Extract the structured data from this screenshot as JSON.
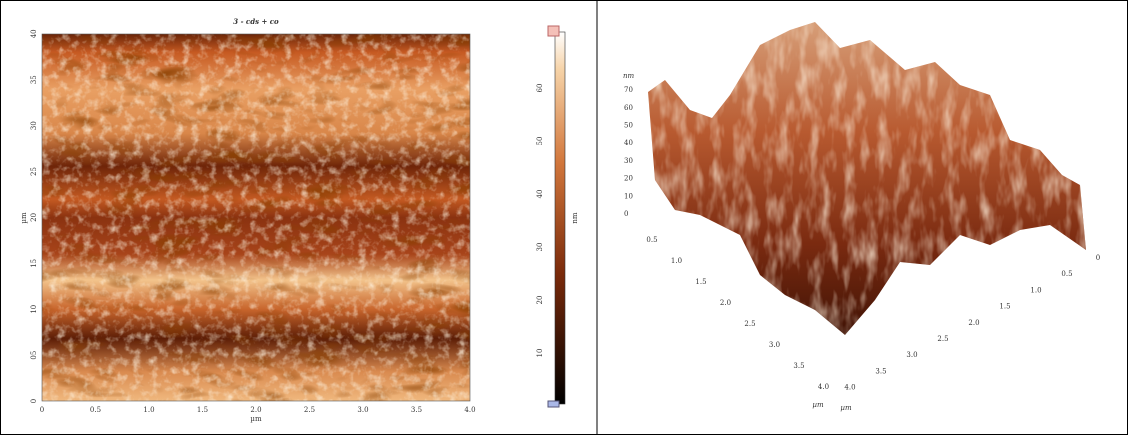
{
  "left": {
    "title": "3 - cds + co",
    "x_ticks": [
      "0",
      "0.5",
      "1.0",
      "1.5",
      "2.0",
      "2.5",
      "3.0",
      "3.5",
      "4.0"
    ],
    "x_label": "µm",
    "y_ticks": [
      "0",
      "05",
      "10",
      "15",
      "20",
      "25",
      "30",
      "35",
      "40"
    ],
    "y_label": "µm",
    "colorbar_ticks": [
      "10",
      "20",
      "30",
      "40",
      "50",
      "60"
    ],
    "colorbar_label": "nm"
  },
  "right": {
    "z_ticks": [
      "0",
      "10",
      "20",
      "30",
      "40",
      "50",
      "60",
      "70"
    ],
    "z_label": "nm",
    "front_ticks": [
      "0.5",
      "1.0",
      "1.5",
      "2.0",
      "2.5",
      "3.0",
      "3.5",
      "4.0"
    ],
    "front_label": "µm",
    "side_ticks": [
      "0",
      "0.5",
      "1.0",
      "1.5",
      "2.0",
      "2.5",
      "3.0",
      "3.5",
      "4.0"
    ],
    "side_label": "µm"
  }
}
